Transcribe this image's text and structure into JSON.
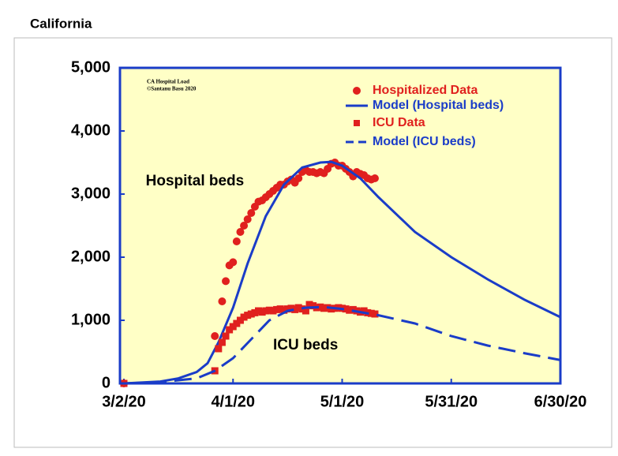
{
  "chart_data": {
    "type": "scatter",
    "title": "California",
    "notes": [
      "CA Hospital Load",
      "©Santanu Basu 2020"
    ],
    "annotations": [
      {
        "text": "Hospital beds",
        "x": "3/8/20",
        "y": 3200
      },
      {
        "text": "ICU beds",
        "x": "4/12/20",
        "y": 600
      }
    ],
    "xlim": [
      "3/2/20",
      "6/30/20"
    ],
    "xticks": [
      "3/2/20",
      "4/1/20",
      "5/1/20",
      "5/31/20",
      "6/30/20"
    ],
    "ylim": [
      0,
      5000
    ],
    "yticks": [
      0,
      {
        "value": 1000,
        "label": "1,000"
      },
      {
        "value": 2000,
        "label": "2,000"
      },
      {
        "value": 3000,
        "label": "3,000"
      },
      {
        "value": 4000,
        "label": "4,000"
      },
      {
        "value": 5000,
        "label": "5,000"
      }
    ],
    "legend": "top-right",
    "series": [
      {
        "name": "Hospitalized Data",
        "color": "#e0201e",
        "marker": "circle",
        "x": [
          "3/2/20",
          "3/27/20",
          "3/29/20",
          "3/30/20",
          "3/31/20",
          "4/1/20",
          "4/2/20",
          "4/3/20",
          "4/4/20",
          "4/5/20",
          "4/6/20",
          "4/7/20",
          "4/8/20",
          "4/9/20",
          "4/10/20",
          "4/11/20",
          "4/12/20",
          "4/13/20",
          "4/14/20",
          "4/15/20",
          "4/16/20",
          "4/17/20",
          "4/18/20",
          "4/19/20",
          "4/20/20",
          "4/21/20",
          "4/22/20",
          "4/23/20",
          "4/24/20",
          "4/25/20",
          "4/26/20",
          "4/27/20",
          "4/28/20",
          "4/29/20",
          "4/30/20",
          "5/1/20",
          "5/2/20",
          "5/3/20",
          "5/4/20",
          "5/5/20",
          "5/6/20",
          "5/7/20",
          "5/8/20",
          "5/9/20",
          "5/10/20"
        ],
        "values": [
          0,
          750,
          1300,
          1620,
          1870,
          1920,
          2250,
          2400,
          2500,
          2600,
          2700,
          2800,
          2880,
          2900,
          2950,
          3000,
          3050,
          3100,
          3150,
          3150,
          3200,
          3230,
          3180,
          3250,
          3350,
          3380,
          3350,
          3350,
          3330,
          3350,
          3330,
          3400,
          3480,
          3500,
          3450,
          3450,
          3400,
          3350,
          3280,
          3350,
          3320,
          3300,
          3250,
          3230,
          3250
        ]
      },
      {
        "name": "Model (Hospital beds)",
        "color": "#1a3cc8",
        "line": "solid",
        "x": [
          "3/2/20",
          "3/12/20",
          "3/17/20",
          "3/22/20",
          "3/25/20",
          "3/28/20",
          "4/1/20",
          "4/5/20",
          "4/10/20",
          "4/15/20",
          "4/20/20",
          "4/25/20",
          "4/28/20",
          "5/1/20",
          "5/6/20",
          "5/11/20",
          "5/21/20",
          "5/31/20",
          "6/10/20",
          "6/20/20",
          "6/30/20"
        ],
        "values": [
          0,
          30,
          80,
          180,
          320,
          650,
          1200,
          1900,
          2650,
          3150,
          3420,
          3500,
          3510,
          3450,
          3250,
          2950,
          2400,
          2000,
          1650,
          1330,
          1050
        ]
      },
      {
        "name": "ICU Data",
        "color": "#e0201e",
        "marker": "square",
        "x": [
          "3/2/20",
          "3/27/20",
          "3/28/20",
          "3/29/20",
          "3/30/20",
          "3/31/20",
          "4/1/20",
          "4/2/20",
          "4/3/20",
          "4/4/20",
          "4/5/20",
          "4/6/20",
          "4/7/20",
          "4/8/20",
          "4/9/20",
          "4/10/20",
          "4/11/20",
          "4/12/20",
          "4/13/20",
          "4/14/20",
          "4/15/20",
          "4/16/20",
          "4/17/20",
          "4/18/20",
          "4/19/20",
          "4/20/20",
          "4/21/20",
          "4/22/20",
          "4/23/20",
          "4/24/20",
          "4/25/20",
          "4/26/20",
          "4/27/20",
          "4/28/20",
          "4/29/20",
          "4/30/20",
          "5/1/20",
          "5/2/20",
          "5/3/20",
          "5/4/20",
          "5/5/20",
          "5/6/20",
          "5/7/20",
          "5/8/20",
          "5/9/20",
          "5/10/20"
        ],
        "values": [
          0,
          200,
          550,
          650,
          750,
          850,
          900,
          950,
          1000,
          1050,
          1080,
          1100,
          1120,
          1150,
          1130,
          1150,
          1160,
          1150,
          1170,
          1180,
          1160,
          1180,
          1190,
          1170,
          1200,
          1180,
          1150,
          1250,
          1230,
          1200,
          1210,
          1190,
          1200,
          1180,
          1190,
          1200,
          1190,
          1180,
          1160,
          1170,
          1150,
          1130,
          1150,
          1120,
          1110,
          1100
        ]
      },
      {
        "name": "Model (ICU beds)",
        "color": "#1a3cc8",
        "line": "dashed",
        "x": [
          "3/2/20",
          "3/12/20",
          "3/22/20",
          "3/27/20",
          "4/1/20",
          "4/6/20",
          "4/11/20",
          "4/16/20",
          "4/21/20",
          "4/26/20",
          "5/1/20",
          "5/11/20",
          "5/21/20",
          "5/31/20",
          "6/10/20",
          "6/20/20",
          "6/30/20"
        ],
        "values": [
          0,
          20,
          80,
          200,
          400,
          700,
          1000,
          1150,
          1200,
          1210,
          1180,
          1080,
          950,
          750,
          600,
          480,
          370
        ]
      }
    ]
  }
}
